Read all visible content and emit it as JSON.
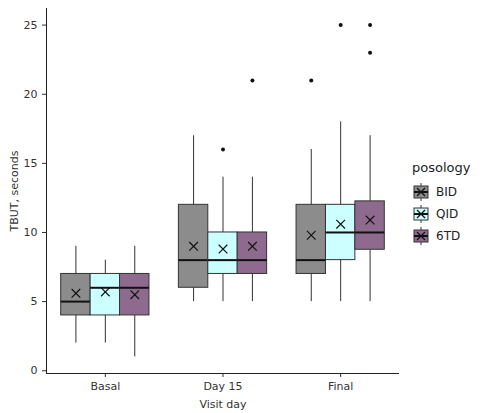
{
  "chart_data": {
    "type": "box",
    "x_label": "Visit day",
    "y_label": "TBUT, seconds",
    "categories": [
      "Basal",
      "Day 15",
      "Final"
    ],
    "legend_title": "posology",
    "legend": "right",
    "marker": "x",
    "grid": false,
    "ylim": [
      -0.2,
      26.2
    ],
    "yticks": [
      0,
      5,
      10,
      15,
      20,
      25
    ],
    "series": [
      {
        "name": "BID",
        "color": "#8c8c8c",
        "min": [
          2,
          5,
          5
        ],
        "q1": [
          4,
          6,
          7
        ],
        "median": [
          5,
          8,
          8
        ],
        "q3": [
          7,
          12,
          12
        ],
        "max": [
          9,
          17,
          16
        ],
        "mean": [
          5.6,
          9.0,
          9.8
        ],
        "outliers": [
          [],
          [],
          [
            21
          ]
        ]
      },
      {
        "name": "QID",
        "color": "#ccffff",
        "min": [
          2,
          5,
          5
        ],
        "q1": [
          4,
          7,
          8
        ],
        "median": [
          6,
          8,
          10
        ],
        "q3": [
          7,
          10,
          12
        ],
        "max": [
          8,
          14,
          18
        ],
        "mean": [
          5.7,
          8.8,
          10.6
        ],
        "outliers": [
          [],
          [
            16
          ],
          [
            25
          ]
        ]
      },
      {
        "name": "6TD",
        "color": "#8e6b8e",
        "min": [
          1,
          5,
          5
        ],
        "q1": [
          4,
          7,
          8.75
        ],
        "median": [
          6,
          8,
          10
        ],
        "q3": [
          7,
          10,
          12.25
        ],
        "max": [
          9,
          14,
          17
        ],
        "mean": [
          5.5,
          9.0,
          10.9
        ],
        "outliers": [
          [],
          [
            21
          ],
          [
            23,
            25
          ]
        ]
      }
    ]
  }
}
